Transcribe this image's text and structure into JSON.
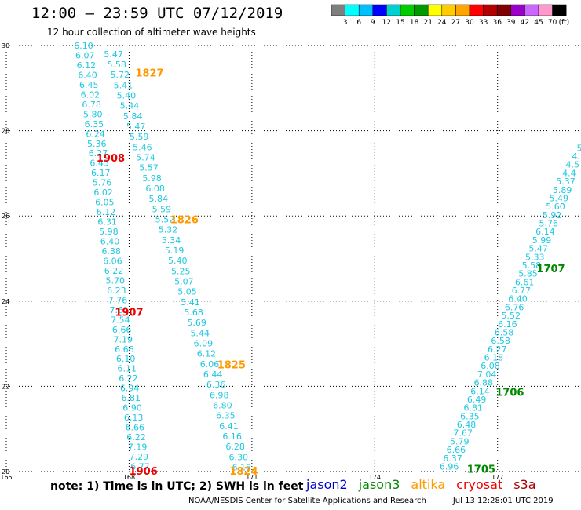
{
  "header": {
    "title": "12:00 — 23:59 UTC 07/12/2019",
    "subtitle": "12 hour collection of altimeter wave heights"
  },
  "legend_scale": {
    "unit_label": "(ft)",
    "ticks": [
      "3",
      "6",
      "9",
      "12",
      "15",
      "18",
      "21",
      "24",
      "27",
      "30",
      "33",
      "36",
      "39",
      "42",
      "45",
      "70"
    ],
    "colors": [
      "#7f7f7f",
      "#00ffff",
      "#00bfff",
      "#0000ff",
      "#00d0d0",
      "#00cc00",
      "#009900",
      "#ffff00",
      "#ffcc00",
      "#ffa500",
      "#ff0000",
      "#b30000",
      "#800000",
      "#9900cc",
      "#cc66ff",
      "#ff99cc",
      "#000000"
    ]
  },
  "chart_data": {
    "type": "scatter",
    "xlim": [
      165,
      179
    ],
    "ylim": [
      20,
      30
    ],
    "x_ticks": [
      "165",
      "168",
      "171",
      "174",
      "177"
    ],
    "y_ticks": [
      "20",
      "22",
      "24",
      "26",
      "28",
      "30"
    ],
    "grid": true,
    "tracks": [
      {
        "x_start": 166.89,
        "y_start": 30,
        "x_end": 168.27,
        "y_end": 20.12,
        "color": "#1fc8e0",
        "values": [
          "6.10",
          "6.07",
          "6.12",
          "6.40",
          "6.45",
          "6.02",
          "6.78",
          "5.80",
          "6.35",
          "6.24",
          "5.36",
          "6.27",
          "6.45",
          "6.17",
          "5.76",
          "6.02",
          "6.05",
          "6.12",
          "6.31",
          "5.98",
          "6.40",
          "6.38",
          "6.06",
          "6.22",
          "5.70",
          "6.23",
          "7.76",
          "7.61",
          "7.54",
          "6.66",
          "7.19",
          "6.66",
          "6.10",
          "6.11",
          "6.22",
          "6.94",
          "6.81",
          "6.90",
          "6.13",
          "6.66",
          "6.22",
          "7.19",
          "7.29",
          "6.77"
        ]
      },
      {
        "x_start": 167.62,
        "y_start": 29.8,
        "x_end": 170.75,
        "y_end": 20.1,
        "color": "#1fc8e0",
        "values": [
          "5.47",
          "5.58",
          "5.72",
          "5.41",
          "5.40",
          "5.44",
          "5.84",
          "5.47",
          "5.59",
          "5.46",
          "5.74",
          "5.57",
          "5.98",
          "6.08",
          "5.84",
          "5.59",
          "5.52",
          "5.32",
          "5.34",
          "5.19",
          "5.40",
          "5.25",
          "5.07",
          "5.05",
          "5.41",
          "5.68",
          "5.69",
          "5.44",
          "6.09",
          "6.12",
          "6.06",
          "6.44",
          "6.36",
          "6.98",
          "6.80",
          "6.35",
          "6.41",
          "6.16",
          "6.28",
          "6.30",
          "6.18"
        ]
      },
      {
        "x_start": 175.82,
        "y_start": 20.12,
        "x_end": 179,
        "y_end": 27.6,
        "color": "#1fc8e0",
        "values": [
          "6.96",
          "6.37",
          "6.66",
          "5.79",
          "7.67",
          "6.48",
          "6.35",
          "6.81",
          "6.49",
          "6.14",
          "6.88",
          "7.04",
          "6.08",
          "6.18",
          "6.27",
          "6.58",
          "6.58",
          "6.16",
          "5.52",
          "6.76",
          "6.40",
          "6.77",
          "6.61",
          "5.85",
          "5.58",
          "5.33",
          "5.47",
          "5.99",
          "6.14",
          "5.76",
          "5.92",
          "5.60",
          "5.49",
          "5.89",
          "5.37",
          "4.4",
          "4.5",
          "4.",
          "5"
        ]
      }
    ],
    "pass_labels": [
      {
        "text": "1827",
        "x": 168.5,
        "y": 29.35,
        "color": "#ff9900"
      },
      {
        "text": "1908",
        "x": 167.55,
        "y": 27.35,
        "color": "#ee0000"
      },
      {
        "text": "1826",
        "x": 169.35,
        "y": 25.9,
        "color": "#ff9900"
      },
      {
        "text": "1907",
        "x": 168.0,
        "y": 23.73,
        "color": "#ee0000"
      },
      {
        "text": "1825",
        "x": 170.5,
        "y": 22.5,
        "color": "#ff9900"
      },
      {
        "text": "1906",
        "x": 168.35,
        "y": 20.0,
        "color": "#ee0000"
      },
      {
        "text": "1824",
        "x": 170.8,
        "y": 20.0,
        "color": "#ff9900"
      },
      {
        "text": "1707",
        "x": 178.3,
        "y": 24.75,
        "color": "#008800"
      },
      {
        "text": "1706",
        "x": 177.3,
        "y": 21.85,
        "color": "#008800"
      },
      {
        "text": "1705",
        "x": 176.6,
        "y": 20.05,
        "color": "#008800"
      }
    ]
  },
  "footer": {
    "note": "note: 1) Time is in UTC; 2) SWH is in feet",
    "satellites": [
      {
        "name": "jason2",
        "color": "#0000cc"
      },
      {
        "name": "jason3",
        "color": "#008800"
      },
      {
        "name": "altika",
        "color": "#ff9900"
      },
      {
        "name": "cryosat",
        "color": "#ee0000"
      },
      {
        "name": "s3a",
        "color": "#aa0000"
      }
    ],
    "credit": "NOAA/NESDIS Center for Satellite Applications and Research",
    "timestamp": "Jul 13 12:28:01 UTC 2019"
  }
}
